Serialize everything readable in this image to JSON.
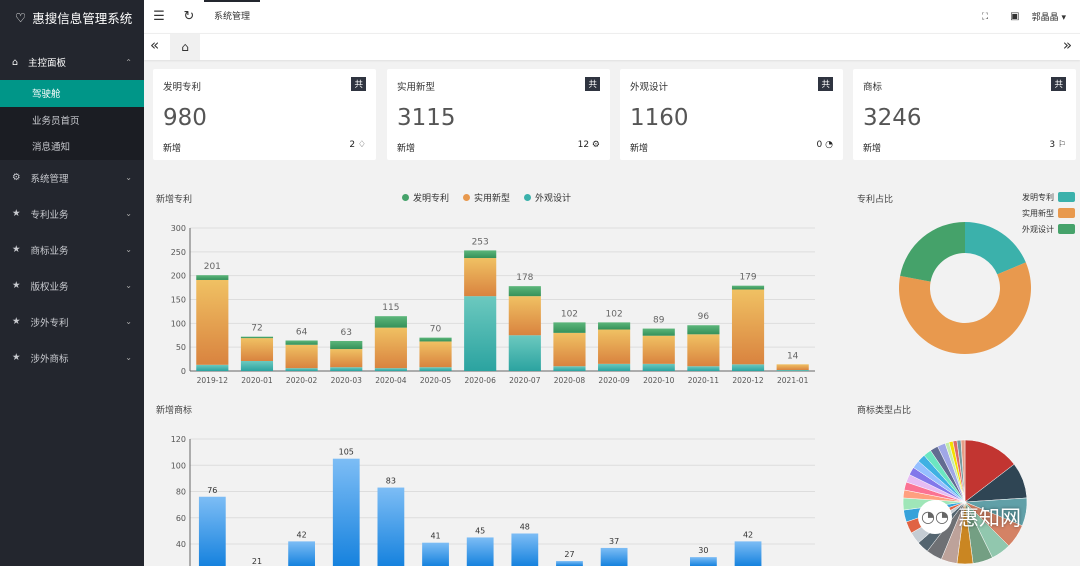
{
  "app": {
    "title": "惠搜信息管理系统"
  },
  "sidebar": {
    "main": {
      "label": "主控面板",
      "items": [
        "驾驶舱",
        "业务员首页",
        "消息通知"
      ]
    },
    "items": [
      "系统管理",
      "专利业务",
      "商标业务",
      "版权业务",
      "涉外专利",
      "涉外商标"
    ]
  },
  "topbar": {
    "tab": "系统管理",
    "user": "郭晶晶"
  },
  "cards": [
    {
      "title": "发明专利",
      "badge": "共",
      "total": "980",
      "new_label": "新增",
      "new_count": "2",
      "icon": "diamond-icon"
    },
    {
      "title": "实用新型",
      "badge": "共",
      "total": "3115",
      "new_label": "新增",
      "new_count": "12",
      "icon": "gear-icon"
    },
    {
      "title": "外观设计",
      "badge": "共",
      "total": "1160",
      "new_label": "新增",
      "new_count": "0",
      "icon": "palette-icon"
    },
    {
      "title": "商标",
      "badge": "共",
      "total": "3246",
      "new_label": "新增",
      "new_count": "3",
      "icon": "flag-icon"
    }
  ],
  "colors": {
    "design": "#3bb1ab",
    "utility": "#e8994e",
    "invention": "#45a26a",
    "blue": "#2b8de0",
    "sidebar": "#23262e",
    "accent": "#009688"
  },
  "watermark": "惠知网",
  "chart_data": [
    {
      "type": "bar",
      "stacked": true,
      "title": "新增专利",
      "ylim": [
        0,
        300
      ],
      "yticks": [
        0,
        50,
        100,
        150,
        200,
        250,
        300
      ],
      "categories": [
        "2019-12",
        "2020-01",
        "2020-02",
        "2020-03",
        "2020-04",
        "2020-05",
        "2020-06",
        "2020-07",
        "2020-08",
        "2020-09",
        "2020-10",
        "2020-11",
        "2020-12",
        "2021-01"
      ],
      "totals": [
        201,
        72,
        64,
        63,
        115,
        70,
        253,
        178,
        102,
        102,
        89,
        96,
        179,
        14
      ],
      "series": [
        {
          "name": "外观设计",
          "values": [
            13,
            21,
            6,
            8,
            6,
            8,
            157,
            75,
            10,
            15,
            15,
            10,
            14,
            2
          ]
        },
        {
          "name": "实用新型",
          "values": [
            178,
            48,
            49,
            38,
            85,
            54,
            80,
            82,
            70,
            72,
            59,
            67,
            157,
            12
          ]
        },
        {
          "name": "发明专利",
          "values": [
            10,
            3,
            9,
            17,
            24,
            8,
            16,
            21,
            22,
            15,
            15,
            19,
            8,
            0
          ]
        }
      ],
      "legend": [
        "发明专利",
        "实用新型",
        "外观设计"
      ],
      "legend_position": "top-center"
    },
    {
      "type": "pie",
      "donut": true,
      "title": "专利占比",
      "labels": [
        "发明专利",
        "实用新型",
        "外观设计"
      ],
      "values": [
        980,
        3115,
        1160
      ],
      "legend_position": "top-right"
    },
    {
      "type": "bar",
      "title": "新增商标",
      "ylim": [
        20,
        120
      ],
      "yticks": [
        40,
        60,
        80,
        100,
        120
      ],
      "values": [
        76,
        21,
        42,
        105,
        83,
        41,
        45,
        48,
        27,
        37,
        null,
        30,
        42,
        null
      ]
    },
    {
      "type": "pie",
      "title": "商标类型占比",
      "values": [
        14,
        9,
        7,
        6,
        5,
        5,
        4,
        4,
        4,
        3,
        3,
        3,
        3,
        3,
        2,
        2,
        2,
        2,
        2,
        2,
        2,
        2,
        2,
        1,
        1,
        1,
        1,
        1
      ],
      "colors": [
        "#c23531",
        "#2f4554",
        "#61a0a8",
        "#d48265",
        "#91c7ae",
        "#749f83",
        "#ca8622",
        "#bda29a",
        "#6e7074",
        "#546570",
        "#c4ccd3",
        "#e06343",
        "#37a2da",
        "#9fe6b8",
        "#ff9f7f",
        "#fb7293",
        "#e7bcf3",
        "#8378ea",
        "#96bfff",
        "#3fb1e3",
        "#6be6c1",
        "#626c91",
        "#a0a7e6",
        "#c4ebad",
        "#f4e001",
        "#dd6b66",
        "#759aa0",
        "#e69d87"
      ]
    }
  ]
}
